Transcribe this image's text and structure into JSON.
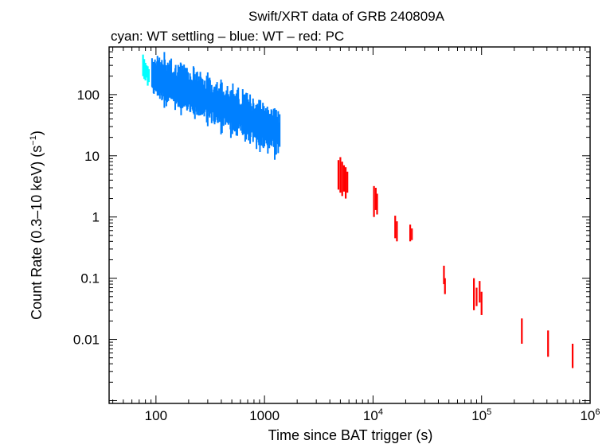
{
  "chart_data": {
    "type": "scatter",
    "title": "Swift/XRT data of GRB 240809A",
    "subtitle": "cyan: WT settling – blue: WT – red: PC",
    "xlabel": "Time since BAT trigger (s)",
    "ylabel": "Count Rate (0.3–10 keV) (s",
    "ylabel_sup": "−1",
    "ylabel_end": ")",
    "x_scale": "log",
    "y_scale": "log",
    "xlim": [
      37,
      1000000
    ],
    "ylim": [
      0.0009,
      600
    ],
    "x_tick_labels": [
      {
        "value": 100,
        "base": "100",
        "sup": ""
      },
      {
        "value": 1000,
        "base": "1000",
        "sup": ""
      },
      {
        "value": 10000,
        "base": "10",
        "sup": "4"
      },
      {
        "value": 100000,
        "base": "10",
        "sup": "5"
      },
      {
        "value": 1000000,
        "base": "10",
        "sup": "6"
      }
    ],
    "y_tick_labels": [
      {
        "value": 0.01,
        "label": "0.01"
      },
      {
        "value": 0.1,
        "label": "0.1"
      },
      {
        "value": 1,
        "label": "1"
      },
      {
        "value": 10,
        "label": "10"
      },
      {
        "value": 100,
        "label": "100"
      }
    ],
    "grid": false,
    "series": [
      {
        "name": "WT settling",
        "color": "#00ffff",
        "points": [
          {
            "t": 76,
            "lo": 200,
            "hi": 450
          },
          {
            "t": 78,
            "lo": 180,
            "hi": 380
          },
          {
            "t": 80,
            "lo": 170,
            "hi": 330
          },
          {
            "t": 82,
            "lo": 190,
            "hi": 300
          },
          {
            "t": 84,
            "lo": 140,
            "hi": 290
          },
          {
            "t": 86,
            "lo": 160,
            "hi": 260
          }
        ]
      },
      {
        "name": "WT",
        "color": "#0080ff",
        "segment": {
          "t_start": 92,
          "t_end": 1380,
          "r_start": 210,
          "r_end": 24,
          "jitter": 0.35
        }
      },
      {
        "name": "PC",
        "color": "#ff0000",
        "points": [
          {
            "t": 4800,
            "lo": 2.8,
            "hi": 8.5
          },
          {
            "t": 5000,
            "lo": 2.5,
            "hi": 9.5
          },
          {
            "t": 5200,
            "lo": 2.2,
            "hi": 8.0
          },
          {
            "t": 5400,
            "lo": 2.6,
            "hi": 7.0
          },
          {
            "t": 5600,
            "lo": 2.0,
            "hi": 6.5
          },
          {
            "t": 5800,
            "lo": 2.5,
            "hi": 5.5
          },
          {
            "t": 10200,
            "lo": 1.0,
            "hi": 3.2
          },
          {
            "t": 10600,
            "lo": 1.3,
            "hi": 3.0
          },
          {
            "t": 10900,
            "lo": 1.1,
            "hi": 2.4
          },
          {
            "t": 16000,
            "lo": 0.45,
            "hi": 1.05
          },
          {
            "t": 16600,
            "lo": 0.4,
            "hi": 0.85
          },
          {
            "t": 22000,
            "lo": 0.4,
            "hi": 0.75
          },
          {
            "t": 22800,
            "lo": 0.42,
            "hi": 0.65
          },
          {
            "t": 45000,
            "lo": 0.08,
            "hi": 0.16
          },
          {
            "t": 46000,
            "lo": 0.055,
            "hi": 0.1
          },
          {
            "t": 85000,
            "lo": 0.03,
            "hi": 0.1
          },
          {
            "t": 90000,
            "lo": 0.035,
            "hi": 0.07
          },
          {
            "t": 96000,
            "lo": 0.04,
            "hi": 0.09
          },
          {
            "t": 100000,
            "lo": 0.025,
            "hi": 0.06
          },
          {
            "t": 235000,
            "lo": 0.0085,
            "hi": 0.022
          },
          {
            "t": 410000,
            "lo": 0.0052,
            "hi": 0.014
          },
          {
            "t": 690000,
            "lo": 0.0034,
            "hi": 0.0085
          }
        ]
      }
    ]
  }
}
